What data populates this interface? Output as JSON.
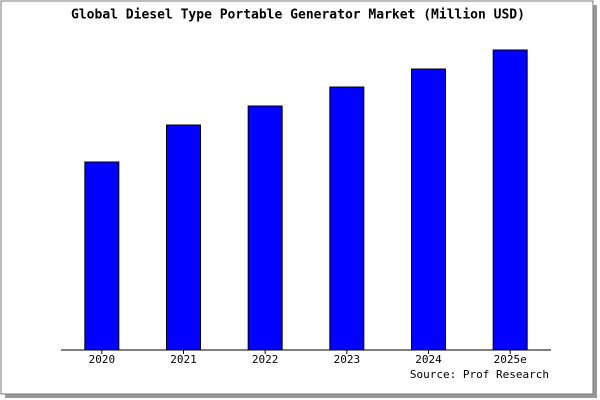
{
  "chart_data": {
    "type": "bar",
    "title": "Global Diesel Type Portable Generator Market (Million USD)",
    "categories": [
      "2020",
      "2021",
      "2022",
      "2023",
      "2024",
      "2025e"
    ],
    "values": [
      188,
      225,
      244,
      263,
      281,
      300
    ],
    "color": "#0000ff",
    "ylim": [
      0,
      305
    ],
    "source": "Source: Prof Research"
  }
}
